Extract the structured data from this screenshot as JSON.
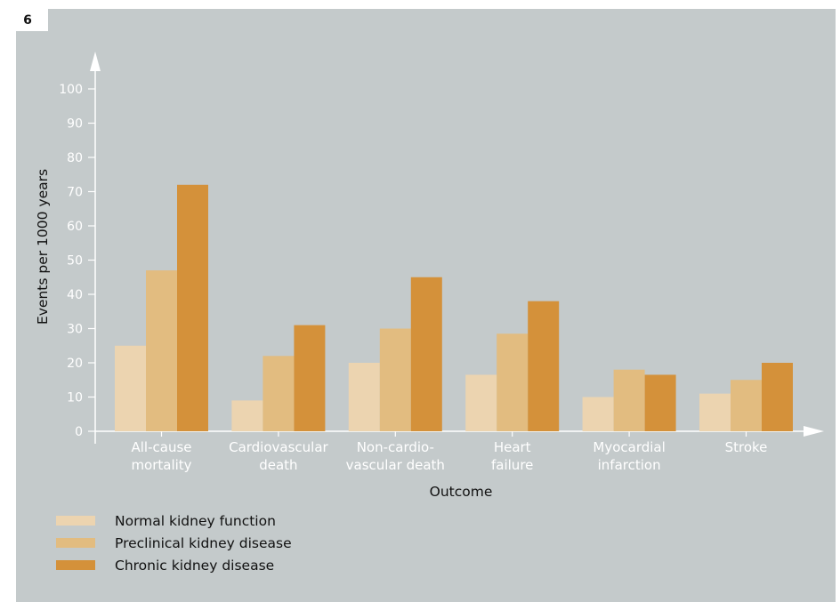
{
  "figure_number": "6",
  "chart_data": {
    "type": "bar",
    "categories": [
      [
        "All-cause",
        "mortality"
      ],
      [
        "Cardiovascular",
        "death"
      ],
      [
        "Non-cardio-",
        "vascular death"
      ],
      [
        "Heart",
        "failure"
      ],
      [
        "Myocardial",
        "infarction"
      ],
      [
        "Stroke"
      ]
    ],
    "series": [
      {
        "name": "Normal kidney function",
        "color": "#ecd4b0",
        "values": [
          25,
          9,
          20,
          16.5,
          10,
          11
        ]
      },
      {
        "name": "Preclinical kidney disease",
        "color": "#e2bc80",
        "values": [
          47,
          22,
          30,
          28.5,
          18,
          15
        ]
      },
      {
        "name": "Chronic kidney disease",
        "color": "#d4913a",
        "values": [
          72,
          31,
          45,
          38,
          16.5,
          20
        ]
      }
    ],
    "xlabel": "Outcome",
    "ylabel": "Events per 1000 years",
    "ylim": [
      0,
      100
    ],
    "yticks": [
      0,
      10,
      20,
      30,
      40,
      50,
      60,
      70,
      80,
      90,
      100
    ],
    "legend_position": "bottom-left",
    "axis_color": "#ffffff",
    "grid": false
  }
}
